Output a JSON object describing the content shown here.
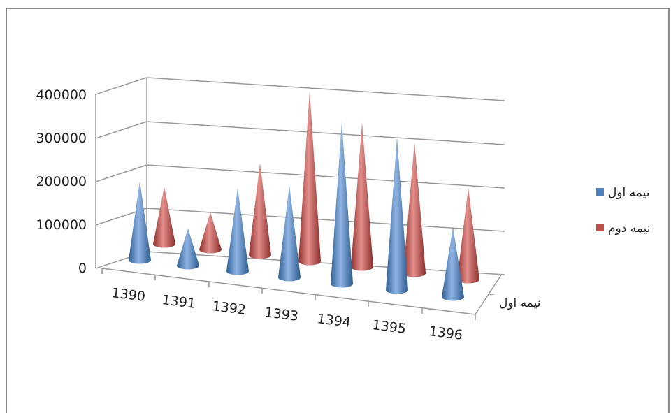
{
  "chart_data": {
    "type": "bar",
    "categories": [
      "1390",
      "1391",
      "1392",
      "1393",
      "1394",
      "1395",
      "1396"
    ],
    "series": [
      {
        "name": "نیمه اول",
        "values": [
          180000,
          85000,
          190000,
          210000,
          370000,
          350000,
          160000
        ],
        "color": "#4f81bd"
      },
      {
        "name": "نیمه دوم",
        "values": [
          130000,
          85000,
          210000,
          390000,
          330000,
          300000,
          210000
        ],
        "color": "#c0504d"
      }
    ],
    "y_ticks": [
      "0",
      "100000",
      "200000",
      "300000",
      "400000"
    ],
    "ylim": [
      0,
      400000
    ],
    "depth_label": "نیمه اول",
    "grid": true,
    "legend_position": "right",
    "mark_shape": "cone"
  }
}
